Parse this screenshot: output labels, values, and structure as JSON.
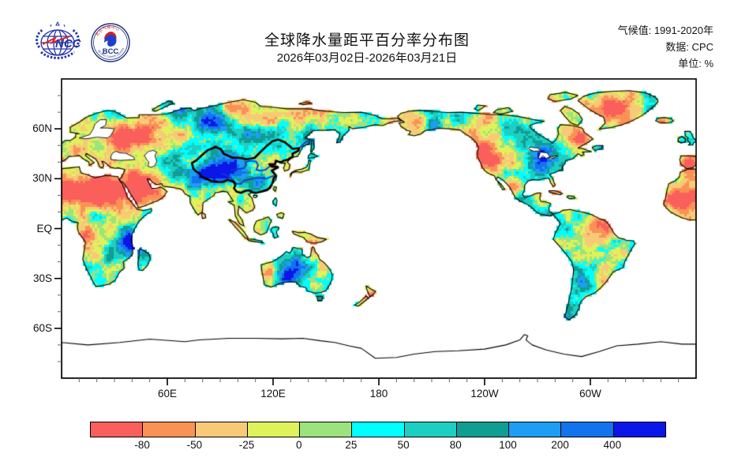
{
  "header": {
    "title": "全球降水量距平百分率分布图",
    "subtitle": "2026年03月02日-2026年03月21日",
    "meta": [
      {
        "label": "气候值:",
        "value": "1991-2020年"
      },
      {
        "label": "数据:",
        "value": "CPC"
      },
      {
        "label": "单位:",
        "value": "%"
      }
    ],
    "logos": {
      "ncc_text": "NCC",
      "bcc_text": "BCC",
      "bcc_arc_top": "北京气候中心",
      "bcc_arc_bottom": "BEIJING CLIMATE CENTER"
    }
  },
  "map": {
    "x_axis": {
      "labels": [
        "60E",
        "120E",
        "180",
        "120W",
        "60W"
      ],
      "lons": [
        60,
        120,
        180,
        240,
        300
      ]
    },
    "y_axis": {
      "labels": [
        "60N",
        "30N",
        "EQ",
        "30S",
        "60S"
      ],
      "lats": [
        60,
        30,
        0,
        -30,
        -60
      ]
    },
    "lon_range": [
      0,
      360
    ],
    "lat_range": [
      -90,
      90
    ]
  },
  "legend": {
    "boundary_values": [
      "-80",
      "-50",
      "-25",
      "0",
      "25",
      "50",
      "80",
      "100",
      "200",
      "400"
    ],
    "colors": [
      "#fa5f5c",
      "#fb9255",
      "#f8ca78",
      "#dff259",
      "#9ce37d",
      "#00ffff",
      "#1dcfc2",
      "#0f9e91",
      "#1e9df4",
      "#1173ee",
      "#0b16e8"
    ],
    "river_color": "#1535d8",
    "coast_color": "#000000"
  }
}
